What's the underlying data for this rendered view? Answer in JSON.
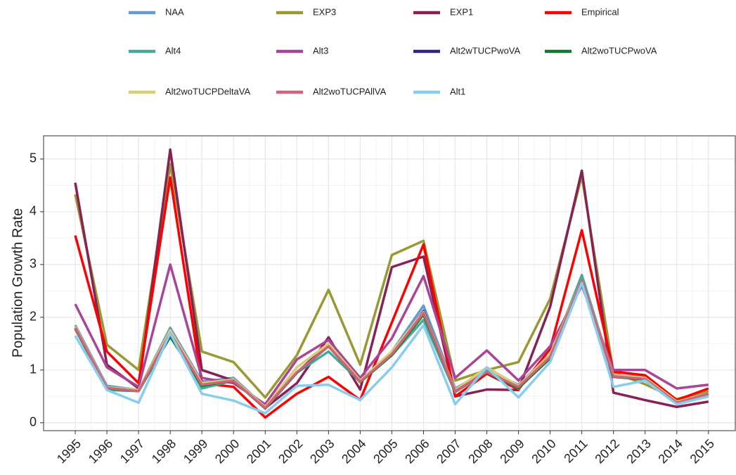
{
  "chart_data": {
    "type": "line",
    "y_label": "Population Growth Rate",
    "x": [
      1995,
      1996,
      1997,
      1998,
      1999,
      2000,
      2001,
      2002,
      2003,
      2004,
      2005,
      2006,
      2007,
      2008,
      2009,
      2010,
      2011,
      2012,
      2013,
      2014,
      2015
    ],
    "xlim": [
      1994,
      2015.87
    ],
    "xticks": [
      1995,
      1996,
      1997,
      1998,
      1999,
      2000,
      2001,
      2002,
      2003,
      2004,
      2005,
      2006,
      2007,
      2008,
      2009,
      2010,
      2011,
      2012,
      2013,
      2014,
      2015
    ],
    "ylim": [
      -0.15,
      5.44
    ],
    "yticks": [
      0,
      1,
      2,
      3,
      4,
      5
    ],
    "grid": true,
    "series": [
      {
        "name": "NAA",
        "color": "#6699cc",
        "values": [
          1.85,
          0.7,
          0.62,
          1.8,
          0.78,
          0.85,
          0.3,
          0.95,
          1.45,
          0.8,
          1.35,
          2.22,
          0.65,
          0.98,
          0.72,
          1.3,
          2.75,
          0.9,
          0.87,
          0.4,
          0.55
        ]
      },
      {
        "name": "EXP3",
        "color": "#999933",
        "values": [
          4.33,
          1.48,
          1.0,
          4.9,
          1.35,
          1.15,
          0.48,
          1.28,
          2.52,
          1.1,
          3.18,
          3.45,
          0.8,
          1.0,
          1.15,
          2.35,
          4.68,
          0.95,
          0.73,
          0.45,
          0.6
        ]
      },
      {
        "name": "EXP1",
        "color": "#882255",
        "values": [
          4.55,
          1.1,
          0.65,
          5.18,
          1.0,
          0.8,
          0.28,
          0.75,
          1.62,
          0.63,
          2.95,
          3.15,
          0.5,
          0.63,
          0.62,
          2.2,
          4.78,
          0.57,
          0.43,
          0.3,
          0.4
        ]
      },
      {
        "name": "Empirical",
        "color": "#ff0000",
        "values": [
          3.55,
          1.35,
          0.75,
          4.65,
          0.75,
          0.68,
          0.1,
          0.55,
          0.87,
          0.43,
          1.9,
          3.38,
          0.5,
          0.93,
          0.63,
          1.4,
          3.65,
          0.97,
          0.9,
          0.43,
          0.65
        ]
      },
      {
        "name": "Alt4",
        "color": "#44aa99",
        "values": [
          1.8,
          0.62,
          0.6,
          1.75,
          0.65,
          0.8,
          0.28,
          0.95,
          1.35,
          0.78,
          1.28,
          1.95,
          0.58,
          0.97,
          0.65,
          1.25,
          2.8,
          0.88,
          0.85,
          0.4,
          0.55
        ]
      },
      {
        "name": "Alt3",
        "color": "#aa4499",
        "values": [
          2.25,
          1.05,
          0.68,
          3.0,
          0.85,
          0.75,
          0.35,
          1.2,
          1.57,
          0.85,
          1.6,
          2.78,
          0.85,
          1.37,
          0.8,
          1.45,
          2.6,
          1.0,
          1.0,
          0.65,
          0.72
        ]
      },
      {
        "name": "Alt2wTUCPwoVA",
        "color": "#332288",
        "values": [
          1.8,
          0.66,
          0.6,
          1.65,
          0.72,
          0.8,
          0.28,
          0.95,
          1.5,
          0.78,
          1.3,
          2.12,
          0.6,
          0.95,
          0.68,
          1.25,
          2.7,
          0.88,
          0.83,
          0.38,
          0.55
        ]
      },
      {
        "name": "Alt2woTUCPwoVA",
        "color": "#117733",
        "values": [
          1.78,
          0.65,
          0.6,
          1.63,
          0.7,
          0.8,
          0.27,
          0.95,
          1.45,
          0.77,
          1.28,
          2.05,
          0.6,
          0.95,
          0.66,
          1.22,
          2.7,
          0.87,
          0.82,
          0.38,
          0.54
        ]
      },
      {
        "name": "Alt2woTUCPDeltaVA",
        "color": "#ddcc77",
        "values": [
          1.82,
          0.67,
          0.62,
          1.75,
          0.75,
          0.82,
          0.3,
          1.05,
          1.5,
          0.8,
          1.35,
          2.1,
          0.62,
          1.05,
          0.7,
          1.3,
          2.7,
          0.9,
          0.85,
          0.4,
          0.55
        ]
      },
      {
        "name": "Alt2woTUCPAllVA",
        "color": "#cc6677",
        "values": [
          1.8,
          0.66,
          0.6,
          1.7,
          0.72,
          0.8,
          0.28,
          0.96,
          1.45,
          0.78,
          1.3,
          2.08,
          0.6,
          0.96,
          0.68,
          1.25,
          2.7,
          0.88,
          0.83,
          0.38,
          0.55
        ]
      },
      {
        "name": "Alt1",
        "color": "#88ccee",
        "values": [
          1.65,
          0.62,
          0.38,
          1.7,
          0.55,
          0.42,
          0.18,
          0.7,
          0.72,
          0.43,
          1.05,
          1.85,
          0.35,
          1.05,
          0.48,
          1.15,
          2.65,
          0.68,
          0.8,
          0.35,
          0.5
        ]
      }
    ]
  }
}
